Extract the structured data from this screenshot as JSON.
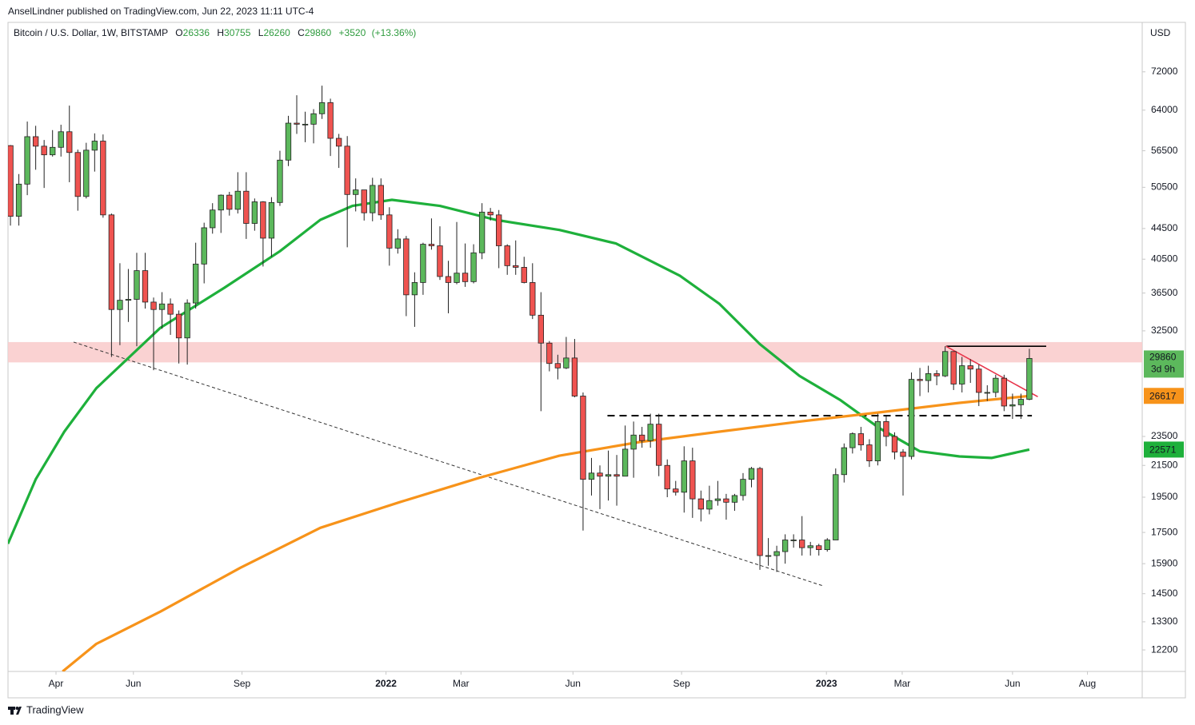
{
  "header": {
    "publisher": "AnselLindner published on TradingView.com, Jun 22, 2023 11:11 UTC-4"
  },
  "footer": {
    "brand": "TradingView"
  },
  "chart_data": {
    "type": "candlestick",
    "title": "Bitcoin / U.S. Dollar, 1W, BITSTAMP",
    "ohlc_labels": [
      "O",
      "H",
      "L",
      "C"
    ],
    "change": {
      "value": 3520,
      "label": "+3520"
    },
    "change_pct": {
      "value": 13.36,
      "label": "(+13.36%)"
    },
    "currency": "USD",
    "countdown": "3d 9h",
    "up_color": "#5cb85c",
    "down_color": "#ef5350",
    "outline_color": "#222222",
    "legend_value_color": "#2e9b3e",
    "log_scale": true,
    "grid": false,
    "xlim": [
      -0.29,
      134.4
    ],
    "ylim": [
      11420,
      83800
    ],
    "xticks": [
      {
        "value": 5.41,
        "label": "Apr"
      },
      {
        "value": 14.6,
        "label": "Jun"
      },
      {
        "value": 27.5,
        "label": "Sep"
      },
      {
        "value": 44.6,
        "label": "2022"
      },
      {
        "value": 53.5,
        "label": "Mar"
      },
      {
        "value": 66.8,
        "label": "Jun"
      },
      {
        "value": 79.7,
        "label": "Sep"
      },
      {
        "value": 96.9,
        "label": "2023"
      },
      {
        "value": 105.9,
        "label": "Mar"
      },
      {
        "value": 119.0,
        "label": "Jun"
      },
      {
        "value": 127.9,
        "label": "Aug"
      }
    ],
    "yticks": [
      72000,
      64000,
      56500,
      50500,
      44500,
      40500,
      36500,
      32500,
      23500,
      21500,
      19500,
      17500,
      15900,
      14500,
      13300,
      12200
    ],
    "candles": [
      [
        57400,
        57500,
        44900,
        46200
      ],
      [
        46200,
        52600,
        44900,
        51000
      ],
      [
        51000,
        61800,
        49300,
        59000
      ],
      [
        59000,
        61000,
        53300,
        57300
      ],
      [
        57300,
        58400,
        50400,
        55800
      ],
      [
        55800,
        60200,
        55500,
        57100
      ],
      [
        57100,
        61200,
        55500,
        59900
      ],
      [
        59900,
        64900,
        51300,
        56200
      ],
      [
        56200,
        56700,
        47000,
        49100
      ],
      [
        49100,
        57900,
        48800,
        56600
      ],
      [
        56600,
        59600,
        53000,
        58200
      ],
      [
        58200,
        59400,
        46000,
        46400
      ],
      [
        46400,
        46600,
        30000,
        34700
      ],
      [
        34700,
        40000,
        31100,
        35700
      ],
      [
        35700,
        39300,
        33400,
        35800
      ],
      [
        35800,
        41300,
        31000,
        39100
      ],
      [
        39100,
        41300,
        34800,
        35500
      ],
      [
        35500,
        36000,
        28800,
        34700
      ],
      [
        34700,
        36600,
        32700,
        35300
      ],
      [
        35300,
        35900,
        32100,
        34200
      ],
      [
        34200,
        34600,
        29400,
        31800
      ],
      [
        31800,
        35800,
        29300,
        35400
      ],
      [
        35400,
        42600,
        34800,
        39900
      ],
      [
        39900,
        45300,
        37600,
        44600
      ],
      [
        44600,
        48100,
        43800,
        47100
      ],
      [
        47100,
        49400,
        43900,
        49300
      ],
      [
        49300,
        49800,
        46300,
        47200
      ],
      [
        47200,
        52900,
        46600,
        49900
      ],
      [
        49900,
        52900,
        43100,
        45200
      ],
      [
        45200,
        48800,
        44200,
        48300
      ],
      [
        48300,
        48400,
        39600,
        43200
      ],
      [
        43200,
        49000,
        40800,
        48200
      ],
      [
        48200,
        56500,
        47700,
        54900
      ],
      [
        54900,
        62900,
        53900,
        61500
      ],
      [
        61500,
        67000,
        59500,
        61300
      ],
      [
        61300,
        63700,
        58000,
        61300
      ],
      [
        61300,
        64200,
        57800,
        63300
      ],
      [
        63300,
        69000,
        62300,
        65500
      ],
      [
        65500,
        66300,
        55600,
        58700
      ],
      [
        58700,
        59500,
        53600,
        57300
      ],
      [
        57300,
        59100,
        42000,
        49400
      ],
      [
        49400,
        51900,
        46900,
        50100
      ],
      [
        50100,
        50100,
        45600,
        46700
      ],
      [
        46700,
        52000,
        45500,
        50800
      ],
      [
        50800,
        51900,
        45700,
        46400
      ],
      [
        46400,
        47500,
        39700,
        41900
      ],
      [
        41900,
        44400,
        41200,
        43100
      ],
      [
        43100,
        43500,
        34000,
        36300
      ],
      [
        36300,
        38900,
        32900,
        37700
      ],
      [
        37700,
        42600,
        36300,
        42400
      ],
      [
        42400,
        45900,
        41700,
        42200
      ],
      [
        42200,
        44800,
        38000,
        38400
      ],
      [
        38400,
        40300,
        34300,
        37700
      ],
      [
        37700,
        45400,
        37500,
        38800
      ],
      [
        38800,
        42500,
        37200,
        37800
      ],
      [
        37800,
        42400,
        37600,
        41300
      ],
      [
        41300,
        48100,
        40500,
        46800
      ],
      [
        46800,
        47400,
        45600,
        46400
      ],
      [
        46400,
        47100,
        39400,
        42200
      ],
      [
        42200,
        42400,
        38600,
        39700
      ],
      [
        39700,
        42900,
        38600,
        39500
      ],
      [
        39500,
        40800,
        37600,
        37700
      ],
      [
        37700,
        40000,
        33700,
        34100
      ],
      [
        34100,
        36600,
        25400,
        31300
      ],
      [
        31300,
        31500,
        28700,
        29400
      ],
      [
        29400,
        30200,
        28000,
        29000
      ],
      [
        29000,
        31900,
        28900,
        29900
      ],
      [
        29900,
        31700,
        26500,
        26600
      ],
      [
        26600,
        26900,
        17600,
        20600
      ],
      [
        20600,
        22000,
        19600,
        21000
      ],
      [
        21000,
        21500,
        18800,
        20800
      ],
      [
        20800,
        22500,
        19300,
        20900
      ],
      [
        20900,
        22200,
        19000,
        20800
      ],
      [
        20800,
        24300,
        20800,
        22600
      ],
      [
        22600,
        24600,
        20700,
        23600
      ],
      [
        23600,
        24200,
        22700,
        23200
      ],
      [
        23200,
        25200,
        22700,
        24400
      ],
      [
        24400,
        25200,
        20800,
        21500
      ],
      [
        21500,
        21900,
        19500,
        20000
      ],
      [
        20000,
        20500,
        19600,
        19800
      ],
      [
        19800,
        22800,
        18600,
        21800
      ],
      [
        21800,
        22700,
        18300,
        19400
      ],
      [
        19400,
        19900,
        18100,
        18800
      ],
      [
        18800,
        20200,
        18500,
        19300
      ],
      [
        19300,
        20500,
        19000,
        19400
      ],
      [
        19400,
        19700,
        18200,
        19200
      ],
      [
        19200,
        19700,
        18700,
        19600
      ],
      [
        19600,
        21000,
        19300,
        20600
      ],
      [
        20600,
        21400,
        20100,
        21300
      ],
      [
        21300,
        21400,
        15600,
        16300
      ],
      [
        16300,
        17200,
        15800,
        16300
      ],
      [
        16300,
        16800,
        15500,
        16500
      ],
      [
        16500,
        17400,
        15900,
        17100
      ],
      [
        17100,
        17400,
        16700,
        17100
      ],
      [
        17100,
        18400,
        16300,
        16700
      ],
      [
        16700,
        17000,
        16300,
        16800
      ],
      [
        16800,
        16900,
        16300,
        16600
      ],
      [
        16600,
        17200,
        16500,
        17100
      ],
      [
        17100,
        21300,
        17100,
        20900
      ],
      [
        20900,
        23000,
        20400,
        22700
      ],
      [
        22700,
        23800,
        22300,
        23700
      ],
      [
        23700,
        24200,
        22500,
        22900
      ],
      [
        22900,
        23300,
        21400,
        21800
      ],
      [
        21800,
        25200,
        21500,
        24600
      ],
      [
        24600,
        25000,
        22800,
        23500
      ],
      [
        23500,
        23800,
        21900,
        22400
      ],
      [
        22400,
        22600,
        19600,
        22100
      ],
      [
        22100,
        28600,
        21900,
        28000
      ],
      [
        28000,
        29000,
        26600,
        27900
      ],
      [
        27900,
        29200,
        26900,
        28500
      ],
      [
        28500,
        28800,
        27500,
        28300
      ],
      [
        28300,
        31000,
        28200,
        30500
      ],
      [
        30500,
        30500,
        27100,
        27600
      ],
      [
        27600,
        30000,
        26900,
        29200
      ],
      [
        29200,
        29800,
        27700,
        28900
      ],
      [
        28900,
        29300,
        25800,
        26900
      ],
      [
        26900,
        27500,
        26200,
        26900
      ],
      [
        26900,
        28400,
        26500,
        28100
      ],
      [
        28100,
        28400,
        25400,
        25800
      ],
      [
        25800,
        26800,
        24800,
        25900
      ],
      [
        25900,
        26800,
        24800,
        26336
      ],
      [
        26336,
        30755,
        26260,
        29860
      ]
    ],
    "series": [
      {
        "color": "#1eb03b",
        "label_color": "#1eb03b",
        "x": [
          -0.3,
          3,
          6.4,
          10.2,
          17.8,
          25.4,
          32,
          36.8,
          40.6,
          45.3,
          51,
          57.6,
          65.2,
          71.9,
          79.5,
          84.2,
          89,
          93.7,
          98.5,
          103.2,
          108,
          112.7,
          116.5,
          121
        ],
        "values": [
          16900,
          20600,
          23850,
          27250,
          32800,
          37100,
          41500,
          45700,
          47700,
          48600,
          47700,
          45700,
          44300,
          42500,
          38500,
          35300,
          31200,
          28300,
          26300,
          24100,
          22450,
          22100,
          22000,
          22571
        ]
      },
      {
        "color": "#f7931a",
        "label_color": "#f7931a",
        "x": [
          6.2,
          10.2,
          17.8,
          27.3,
          36.8,
          46.2,
          55.7,
          65.2,
          74.7,
          84.2,
          93.7,
          103.2,
          112.7,
          121
        ],
        "values": [
          11420,
          12430,
          13720,
          15700,
          17750,
          19200,
          20700,
          22150,
          23100,
          23850,
          24600,
          25300,
          26050,
          26617
        ]
      }
    ],
    "zone": {
      "range": [
        29500,
        31400
      ],
      "color": "#f9caca"
    },
    "drawings": [
      {
        "style": "dotted",
        "color": "#333333",
        "points": [
          [
            7.5,
            31400
          ],
          [
            96.6,
            14840
          ]
        ]
      },
      {
        "style": "dashed",
        "color": "#000000",
        "points": [
          [
            70.9,
            25050
          ],
          [
            121.3,
            25050
          ]
        ]
      },
      {
        "style": "solid",
        "color": "#000000",
        "points": [
          [
            111.1,
            31000
          ],
          [
            123,
            31000
          ]
        ]
      },
      {
        "style": "solid",
        "color": "#e8344a",
        "points": [
          [
            111.1,
            31000
          ],
          [
            122,
            26550
          ]
        ]
      }
    ]
  }
}
